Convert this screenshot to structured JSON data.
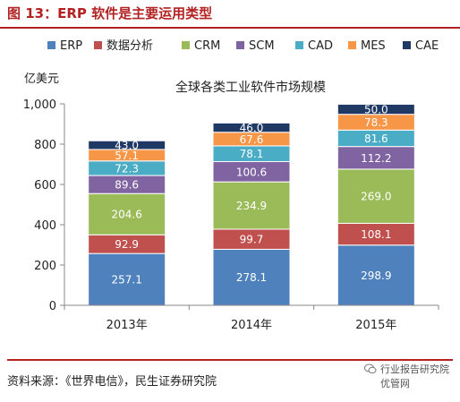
{
  "figure": {
    "title": "图 13：ERP 软件是主要运用类型",
    "source": "资料来源：《世界电信》，民生证券研究院"
  },
  "watermark": {
    "line1": "行业报告研究院",
    "line2": "优管网"
  },
  "colors": {
    "accent": "#b22222",
    "ERP": "#4f81bd",
    "数据分析": "#c0504d",
    "CRM": "#9bbb59",
    "SCM": "#8064a2",
    "CAD": "#4bacc6",
    "MES": "#f79646",
    "CAE": "#1f3864"
  },
  "chart_data": {
    "type": "bar",
    "stacked": true,
    "title": "全球各类工业软件市场规模",
    "ylabel": "亿美元",
    "xlabel": "",
    "categories": [
      "2013年",
      "2014年",
      "2015年"
    ],
    "ylim": [
      0,
      1000
    ],
    "yticks": [
      "0",
      "200",
      "400",
      "600",
      "800",
      "1,000"
    ],
    "ytick_values": [
      0,
      200,
      400,
      600,
      800,
      1000
    ],
    "legend_position": "top",
    "grid": false,
    "series": [
      {
        "name": "ERP",
        "values": [
          257.1,
          278.1,
          298.9
        ]
      },
      {
        "name": "数据分析",
        "values": [
          92.9,
          99.7,
          108.1
        ]
      },
      {
        "name": "CRM",
        "values": [
          204.6,
          234.9,
          269.0
        ]
      },
      {
        "name": "SCM",
        "values": [
          89.6,
          100.6,
          112.2
        ]
      },
      {
        "name": "CAD",
        "values": [
          72.3,
          78.1,
          81.6
        ]
      },
      {
        "name": "MES",
        "values": [
          57.1,
          67.6,
          78.3
        ]
      },
      {
        "name": "CAE",
        "values": [
          43.0,
          46.0,
          50.0
        ]
      }
    ],
    "value_labels": [
      [
        "257.1",
        "278.1",
        "298.9"
      ],
      [
        "92.9",
        "99.7",
        "108.1"
      ],
      [
        "204.6",
        "234.9",
        "269.0"
      ],
      [
        "89.6",
        "100.6",
        "112.2"
      ],
      [
        "72.3",
        "78.1",
        "81.6"
      ],
      [
        "57.1",
        "67.6",
        "78.3"
      ],
      [
        "43.0",
        "46.0",
        "50.0"
      ]
    ]
  }
}
